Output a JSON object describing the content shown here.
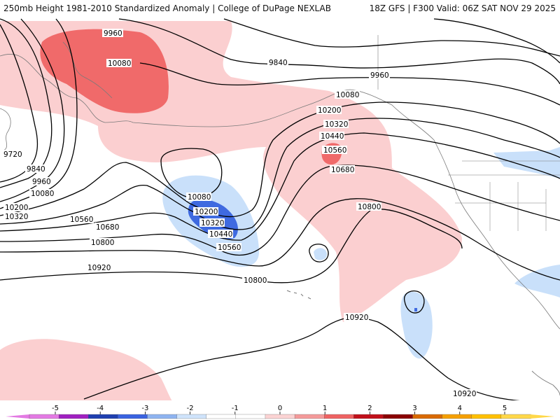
{
  "header": {
    "left_title": "250mb Height 1981-2010 Standardized Anomaly | College of DuPage NEXLAB",
    "right_title": "18Z GFS | F300 Valid: 06Z SAT NOV 29 2025"
  },
  "map": {
    "variable": "250mb geopotential height",
    "units": "meters",
    "contour_interval": 120,
    "shading": "standardized anomaly",
    "contour_labels": [
      {
        "id": "c9960a",
        "text": "9960"
      },
      {
        "id": "c10080a",
        "text": "10080"
      },
      {
        "id": "c9840a",
        "text": "9840"
      },
      {
        "id": "c9960b",
        "text": "9960"
      },
      {
        "id": "c10080b",
        "text": "10080"
      },
      {
        "id": "c10200a",
        "text": "10200"
      },
      {
        "id": "c10320a",
        "text": "10320"
      },
      {
        "id": "c10440a",
        "text": "10440"
      },
      {
        "id": "c10560a",
        "text": "10560"
      },
      {
        "id": "c10680a",
        "text": "10680"
      },
      {
        "id": "c10800a",
        "text": "10800"
      },
      {
        "id": "c9720w",
        "text": "9720"
      },
      {
        "id": "c9840w",
        "text": "9840"
      },
      {
        "id": "c9960w",
        "text": "9960"
      },
      {
        "id": "c10080w",
        "text": "10080"
      },
      {
        "id": "c10200w",
        "text": "10200"
      },
      {
        "id": "c10320w",
        "text": "10320"
      },
      {
        "id": "c10560w",
        "text": "10560"
      },
      {
        "id": "c10680w",
        "text": "10680"
      },
      {
        "id": "c10800w",
        "text": "10800"
      },
      {
        "id": "c10920w",
        "text": "10920"
      },
      {
        "id": "c10080low",
        "text": "10080"
      },
      {
        "id": "c10200low",
        "text": "10200"
      },
      {
        "id": "c10320low",
        "text": "10320"
      },
      {
        "id": "c10440low",
        "text": "10440"
      },
      {
        "id": "c10560low",
        "text": "10560"
      },
      {
        "id": "c10800s",
        "text": "10800"
      },
      {
        "id": "c10920s",
        "text": "10920"
      },
      {
        "id": "c10920se",
        "text": "10920"
      }
    ]
  },
  "colorbar": {
    "ticks": [
      "-5",
      "-4",
      "-3",
      "-2",
      "-1",
      "0",
      "1",
      "2",
      "3",
      "4",
      "5"
    ],
    "colors": [
      "#e37ae3",
      "#a020c0",
      "#1f3fb0",
      "#3a63e0",
      "#8fb4f0",
      "#cfe3fb",
      "#ffffff",
      "#ffffff",
      "#fbd3d3",
      "#f49a9a",
      "#ee6363",
      "#c0101a",
      "#8b0000",
      "#d96a00",
      "#f5a000",
      "#ffc000",
      "#ffd84a"
    ]
  },
  "palette": {
    "neg1": "#c9e0fa",
    "neg2": "#3f6ae0",
    "pos1": "#fbcfd0",
    "pos2": "#f06a6a",
    "contour": "#000000",
    "coast": "#7a7a7a"
  }
}
